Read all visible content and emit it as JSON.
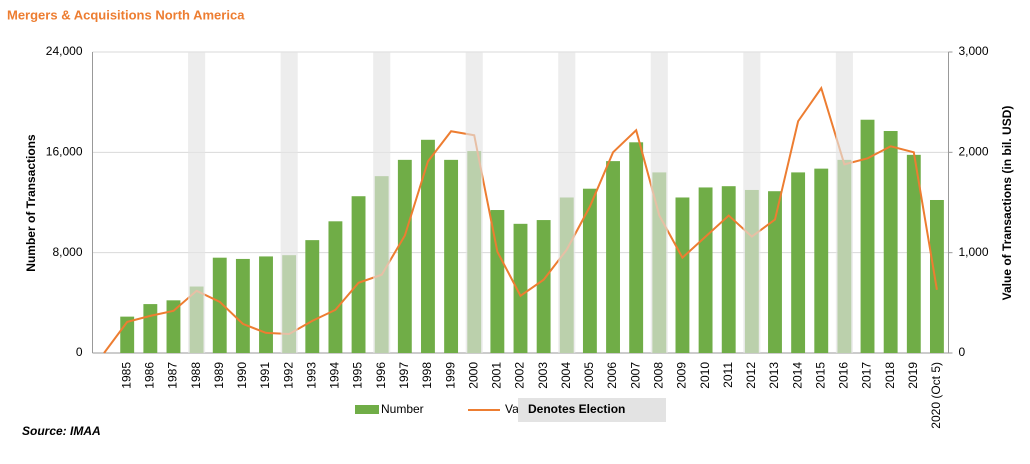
{
  "chart_data": {
    "type": "bar-line",
    "title": "Mergers & Acquisitions North America",
    "source": "Source: IMAA",
    "y_label": "Number of Transactions",
    "y2_label": "Value of Transactions (in bil. USD)",
    "categories": [
      null,
      "1985",
      "1986",
      "1987",
      "1988",
      "1989",
      "1990",
      "1991",
      "1992",
      "1993",
      "1994",
      "1995",
      "1996",
      "1997",
      "1998",
      "1999",
      "2000",
      "2001",
      "2002",
      "2003",
      "2004",
      "2005",
      "2006",
      "2007",
      "2008",
      "2009",
      "2010",
      "2011",
      "2012",
      "2013",
      "2014",
      "2015",
      "2016",
      "2017",
      "2018",
      "2019",
      "2020 (Oct 5)"
    ],
    "series": [
      {
        "name": "Number",
        "color": "#70ad47",
        "type": "bar",
        "values": [
          null,
          2900,
          3900,
          4200,
          5300,
          7600,
          7500,
          7700,
          7800,
          9000,
          10500,
          12500,
          14100,
          15400,
          17000,
          15400,
          16100,
          11400,
          10300,
          10600,
          12400,
          13100,
          15300,
          16800,
          14400,
          12400,
          13200,
          13300,
          13000,
          12900,
          14400,
          14700,
          15400,
          18600,
          17700,
          15800,
          12200
        ]
      },
      {
        "name": "Value",
        "color": "#ed7d31",
        "type": "line",
        "axis": "y2",
        "values": [
          0,
          310,
          370,
          420,
          620,
          510,
          290,
          200,
          190,
          320,
          430,
          700,
          780,
          1170,
          1910,
          2210,
          2170,
          1010,
          570,
          730,
          1030,
          1460,
          2000,
          2220,
          1370,
          950,
          1160,
          1370,
          1160,
          1330,
          2310,
          2640,
          1880,
          1940,
          2060,
          2000,
          630
        ]
      }
    ],
    "highlight": {
      "name": "Denotes Election",
      "color": "#e3e3e3",
      "categories": [
        4,
        8,
        12,
        16,
        20,
        24,
        28,
        32
      ]
    },
    "ylim": [
      0,
      24000
    ],
    "yticks": [
      0,
      {
        "value": 8000,
        "label": "8,000"
      },
      {
        "value": 16000,
        "label": "16,000"
      },
      {
        "value": 24000,
        "label": "24,000"
      }
    ],
    "y2lim": [
      0,
      3000
    ],
    "y2ticks": [
      0,
      {
        "value": 1000,
        "label": "1,000"
      },
      {
        "value": 2000,
        "label": "2,000"
      },
      {
        "value": 3000,
        "label": "3,000"
      }
    ],
    "grid": true
  }
}
